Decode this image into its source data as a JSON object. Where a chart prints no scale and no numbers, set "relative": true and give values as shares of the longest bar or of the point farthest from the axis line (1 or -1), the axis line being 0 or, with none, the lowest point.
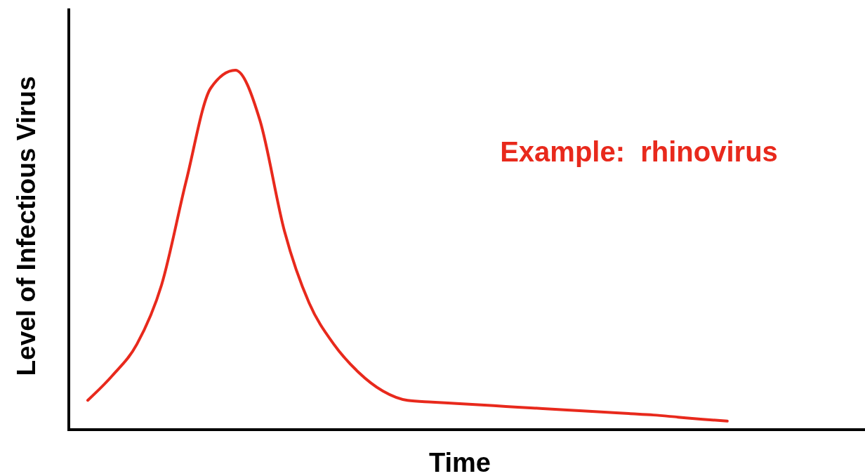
{
  "chart_data": {
    "type": "line",
    "relative": true,
    "xlabel": "Time",
    "ylabel": "Level of Infectious Virus",
    "annotations": [
      "Example:  rhinovirus"
    ],
    "categories": [
      null,
      null,
      null,
      null,
      null,
      null,
      null,
      null,
      null,
      null,
      null,
      null,
      null,
      null,
      null,
      null,
      null,
      null,
      null,
      null,
      null,
      null,
      null,
      null,
      null,
      null,
      null
    ],
    "series": [
      {
        "color": "#e8291c",
        "values": [
          0.078,
          0.147,
          0.235,
          0.4,
          0.69,
          0.95,
          1,
          0.86,
          0.55,
          0.35,
          0.235,
          0.157,
          0.104,
          0.078,
          0.073,
          0.069,
          0.065,
          0.061,
          0.057,
          0.053,
          0.049,
          0.045,
          0.041,
          0.037,
          0.031,
          0.025,
          0.02
        ]
      }
    ]
  }
}
